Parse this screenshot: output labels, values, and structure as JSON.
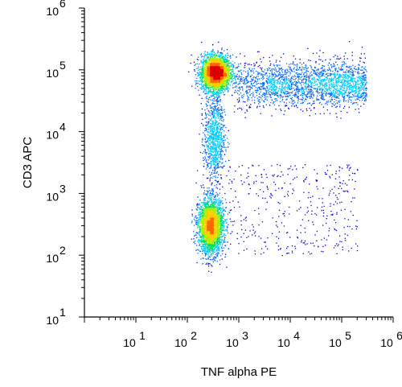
{
  "chart_data": {
    "type": "scatter",
    "plot_style": "flow cytometry density dot plot",
    "xlabel": "TNF alpha PE",
    "ylabel": "CD3 APC",
    "xscale": "log",
    "yscale": "log",
    "xlim": [
      1,
      1000000
    ],
    "ylim": [
      10,
      1000000
    ],
    "grid": false,
    "x_ticks": [
      {
        "value": 10,
        "base": "10",
        "exp": "1"
      },
      {
        "value": 100,
        "base": "10",
        "exp": "2"
      },
      {
        "value": 1000,
        "base": "10",
        "exp": "3"
      },
      {
        "value": 10000,
        "base": "10",
        "exp": "4"
      },
      {
        "value": 100000,
        "base": "10",
        "exp": "5"
      },
      {
        "value": 1000000,
        "base": "10",
        "exp": "6"
      }
    ],
    "y_ticks": [
      {
        "value": 10,
        "base": "10",
        "exp": "1"
      },
      {
        "value": 100,
        "base": "10",
        "exp": "2"
      },
      {
        "value": 1000,
        "base": "10",
        "exp": "3"
      },
      {
        "value": 10000,
        "base": "10",
        "exp": "4"
      },
      {
        "value": 100000,
        "base": "10",
        "exp": "5"
      },
      {
        "value": 1000000,
        "base": "10",
        "exp": "6"
      }
    ],
    "populations": [
      {
        "x_center": 350,
        "y_center": 90000,
        "sx_decades": 0.14,
        "sy_decades": 0.14,
        "events": 3200
      },
      {
        "x_center": 280,
        "y_center": 300,
        "sx_decades": 0.12,
        "sy_decades": 0.22,
        "events": 2800
      },
      {
        "x_center": 330,
        "y_center": 8000,
        "sx_decades": 0.1,
        "sy_decades": 0.35,
        "events": 900
      },
      {
        "x_from": 800,
        "x_to": 300000,
        "y_center": 60000,
        "sy_decades": 0.18,
        "events": 2200
      },
      {
        "x_from": 500,
        "x_to": 200000,
        "y_from": 100,
        "y_to": 3000,
        "events": 400
      }
    ],
    "density_colors": [
      "#0000cc",
      "#0066ff",
      "#00ccff",
      "#00dd66",
      "#aaee00",
      "#ffcc00",
      "#ff6600",
      "#dd0000"
    ]
  }
}
